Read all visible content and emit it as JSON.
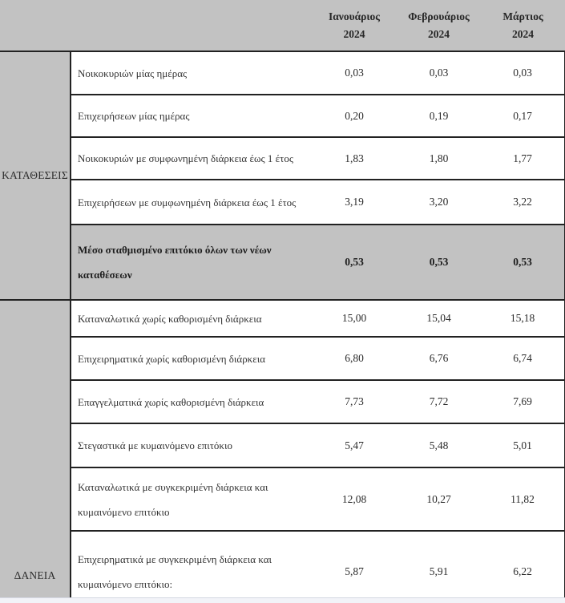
{
  "header": {
    "columns": [
      {
        "month": "Ιανουάριος",
        "year": "2024"
      },
      {
        "month": "Φεβρουάριος",
        "year": "2024"
      },
      {
        "month": "Μάρτιος",
        "year": "2024"
      }
    ]
  },
  "sections": [
    {
      "label": "ΚΑΤΑΘΕΣΕΙΣ",
      "rows": [
        {
          "label": "Νοικοκυριών μίας ημέρας",
          "values": [
            "0,03",
            "0,03",
            "0,03"
          ]
        },
        {
          "label": "Επιχειρήσεων μίας ημέρας",
          "values": [
            "0,20",
            "0,19",
            "0,17"
          ]
        },
        {
          "label": "Νοικοκυριών με συμφωνημένη διάρκεια έως 1 έτος",
          "values": [
            "1,83",
            "1,80",
            "1,77"
          ]
        },
        {
          "label": "Επιχειρήσεων με συμφωνημένη διάρκεια έως 1 έτος",
          "values": [
            "3,19",
            "3,20",
            "3,22"
          ]
        },
        {
          "label": "Μέσο σταθμισμένο επιτόκιο όλων των νέων\nκαταθέσεων",
          "values": [
            "0,53",
            "0,53",
            "0,53"
          ],
          "bold": true
        }
      ]
    },
    {
      "label": "ΔΑΝΕΙΑ",
      "rows": [
        {
          "label": "Καταναλωτικά χωρίς καθορισμένη διάρκεια",
          "values": [
            "15,00",
            "15,04",
            "15,18"
          ]
        },
        {
          "label": "Επιχειρηματικά χωρίς καθορισμένη διάρκεια",
          "values": [
            "6,80",
            "6,76",
            "6,74"
          ]
        },
        {
          "label": "Επαγγελματικά χωρίς καθορισμένη διάρκεια",
          "values": [
            "7,73",
            "7,72",
            "7,69"
          ]
        },
        {
          "label": "Στεγαστικά με κυμαινόμενο επιτόκιο",
          "values": [
            "5,47",
            "5,48",
            "5,01"
          ]
        },
        {
          "label": "Καταναλωτικά με συγκεκριμένη διάρκεια και\nκυμαινόμενο επιτόκιο",
          "values": [
            "12,08",
            "10,27",
            "11,82"
          ]
        },
        {
          "label": "Επιχειρηματικά με συγκεκριμένη διάρκεια και\nκυμαινόμενο επιτόκιο:",
          "values": [
            "5,87",
            "5,91",
            "6,22"
          ]
        }
      ]
    }
  ],
  "chart_data": {
    "type": "table",
    "columns": [
      "",
      "Ιανουάριος 2024",
      "Φεβρουάριος 2024",
      "Μάρτιος 2024"
    ],
    "row_groups": [
      {
        "group": "ΚΑΤΑΘΕΣΕΙΣ",
        "rows": [
          [
            "Νοικοκυριών μίας ημέρας",
            0.03,
            0.03,
            0.03
          ],
          [
            "Επιχειρήσεων μίας ημέρας",
            0.2,
            0.19,
            0.17
          ],
          [
            "Νοικοκυριών με συμφωνημένη διάρκεια έως 1 έτος",
            1.83,
            1.8,
            1.77
          ],
          [
            "Επιχειρήσεων με συμφωνημένη διάρκεια έως 1 έτος",
            3.19,
            3.2,
            3.22
          ],
          [
            "Μέσο σταθμισμένο επιτόκιο όλων των νέων καταθέσεων",
            0.53,
            0.53,
            0.53
          ]
        ]
      },
      {
        "group": "ΔΑΝΕΙΑ",
        "rows": [
          [
            "Καταναλωτικά χωρίς καθορισμένη διάρκεια",
            15.0,
            15.04,
            15.18
          ],
          [
            "Επιχειρηματικά χωρίς καθορισμένη διάρκεια",
            6.8,
            6.76,
            6.74
          ],
          [
            "Επαγγελματικά χωρίς καθορισμένη διάρκεια",
            7.73,
            7.72,
            7.69
          ],
          [
            "Στεγαστικά με κυμαινόμενο επιτόκιο",
            5.47,
            5.48,
            5.01
          ],
          [
            "Καταναλωτικά με συγκεκριμένη διάρκεια και κυμαινόμενο επιτόκιο",
            12.08,
            10.27,
            11.82
          ],
          [
            "Επιχειρηματικά με συγκεκριμένη διάρκεια και κυμαινόμενο επιτόκιο:",
            5.87,
            5.91,
            6.22
          ]
        ]
      }
    ]
  },
  "colors": {
    "header_bg": "#c2c2c2",
    "group_bg": "#c2c2c2",
    "highlight_bg": "#c2c2c2",
    "border": "#222222",
    "footer_strip": "#f2f3f8"
  }
}
